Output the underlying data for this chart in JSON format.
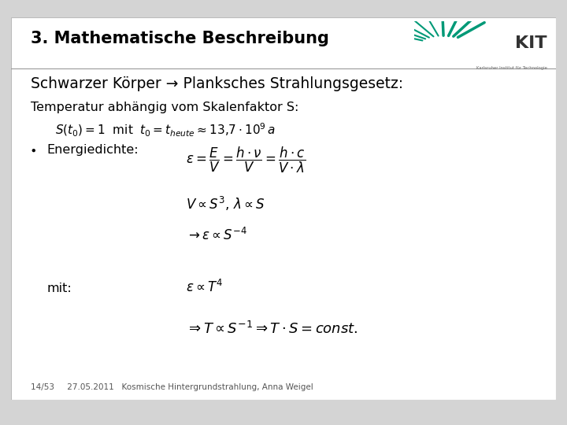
{
  "bg_color": "#d4d4d4",
  "slide_bg": "white",
  "title": "3. Mathematische Beschreibung",
  "title_fontsize": 15,
  "subtitle": "Schwarzer Körper → Planksches Strahlungsgesetz:",
  "subtitle_fontsize": 13.5,
  "line1_text": "Temperatur abhängig vom Skalenfaktor S:",
  "line1_fontsize": 11.5,
  "footer_text": "14/53     27.05.2011   Kosmische Hintergrundstrahlung, Anna Weigel",
  "footer_fontsize": 7.5,
  "formula_fontsize": 11,
  "formula_indent": 0.32
}
